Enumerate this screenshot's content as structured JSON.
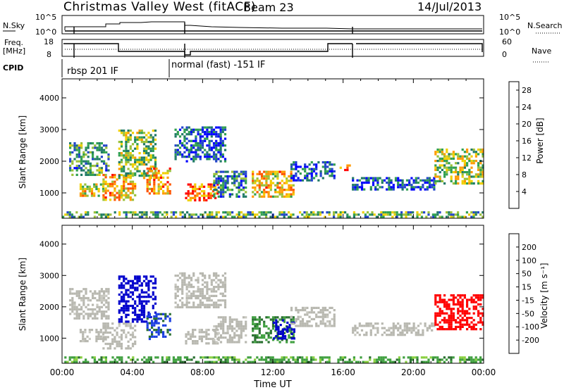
{
  "title": "Christmas Valley West (fitACF)",
  "beam": "Beam 23",
  "date": "14/Jul/2013",
  "xlabel": "Time UT",
  "x_ticks": [
    "00:00",
    "04:00",
    "08:00",
    "12:00",
    "16:00",
    "20:00",
    "00:00"
  ],
  "top_panels": {
    "nsky_label": "N.Sky",
    "nsky_ticks": [
      "10^5",
      "10^0"
    ],
    "nsearch_label": "N.Search",
    "freq_label_1": "Freq.",
    "freq_label_2": "[MHz]",
    "freq_ticks": [
      "18",
      "8"
    ],
    "nave_ticks": [
      "60",
      "0"
    ],
    "nave_label": "Nave",
    "cpid_label": "CPID",
    "cpid_1": "rbsp 201 IF",
    "cpid_2": "normal (fast) -151 IF"
  },
  "colors": {
    "power": [
      "#0000ff",
      "#2244cc",
      "#207a66",
      "#30a050",
      "#9ac03a",
      "#f0d000",
      "#ff9a00",
      "#ff5500",
      "#ff0000"
    ],
    "velocity": [
      "#0000cc",
      "#1c3fe0",
      "#2a7030",
      "#40a040",
      "#8ad040",
      "#c8c8c0",
      "#f0e000",
      "#ffa000",
      "#ff5000",
      "#ff0000"
    ],
    "ground": "#b8b8b0"
  },
  "chart_data": [
    {
      "type": "heatmap",
      "name": "power",
      "ylabel": "Slant Range [km]",
      "yticks": [
        1000,
        2000,
        3000,
        4000
      ],
      "ylim": [
        200,
        4600
      ],
      "xlim": [
        0,
        24
      ],
      "colorbar_label": "Power [dB]",
      "colorbar_ticks": [
        "4",
        "8",
        "12",
        "16",
        "20",
        "24",
        "28"
      ],
      "colorbar_range": [
        0,
        30
      ],
      "clusters": [
        {
          "t0": 0.4,
          "t1": 2.7,
          "r0": 1600,
          "r1": 2600,
          "v": 10
        },
        {
          "t0": 1.0,
          "t1": 2.4,
          "r0": 900,
          "r1": 1300,
          "v": 18
        },
        {
          "t0": 2.3,
          "t1": 4.2,
          "r0": 800,
          "r1": 1600,
          "v": 20
        },
        {
          "t0": 3.2,
          "t1": 5.3,
          "r0": 1500,
          "r1": 3000,
          "v": 14
        },
        {
          "t0": 4.8,
          "t1": 6.2,
          "r0": 1000,
          "r1": 1800,
          "v": 22
        },
        {
          "t0": 6.4,
          "t1": 9.3,
          "r0": 2000,
          "r1": 3100,
          "v": 6
        },
        {
          "t0": 7.0,
          "t1": 8.8,
          "r0": 800,
          "r1": 1300,
          "v": 24
        },
        {
          "t0": 8.6,
          "t1": 10.5,
          "r0": 900,
          "r1": 1700,
          "v": 8
        },
        {
          "t0": 10.8,
          "t1": 13.2,
          "r0": 900,
          "r1": 1700,
          "v": 20
        },
        {
          "t0": 13.0,
          "t1": 15.5,
          "r0": 1400,
          "r1": 2000,
          "v": 6
        },
        {
          "t0": 15.8,
          "t1": 16.4,
          "r0": 1700,
          "r1": 1900,
          "v": 22
        },
        {
          "t0": 16.5,
          "t1": 21.2,
          "r0": 1100,
          "r1": 1500,
          "v": 6
        },
        {
          "t0": 21.2,
          "t1": 23.9,
          "r0": 1300,
          "r1": 2400,
          "v": 16
        },
        {
          "t0": 0.0,
          "t1": 24.0,
          "r0": 250,
          "r1": 420,
          "v": 12
        }
      ]
    },
    {
      "type": "heatmap",
      "name": "velocity",
      "ylabel": "Slant Range [km]",
      "yticks": [
        1000,
        2000,
        3000,
        4000
      ],
      "ylim": [
        200,
        4600
      ],
      "xlim": [
        0,
        24
      ],
      "colorbar_label": "Velocity [m s⁻¹]",
      "colorbar_ticks": [
        "200",
        "100",
        "50",
        "15",
        "-15",
        "-50",
        "-100",
        "-200"
      ],
      "clusters": [
        {
          "t0": 0.4,
          "t1": 2.7,
          "r0": 1600,
          "r1": 2600,
          "v": 0,
          "g": true
        },
        {
          "t0": 1.0,
          "t1": 2.4,
          "r0": 900,
          "r1": 1300,
          "v": 0,
          "g": true
        },
        {
          "t0": 2.3,
          "t1": 4.2,
          "r0": 700,
          "r1": 1500,
          "v": 0,
          "g": true
        },
        {
          "t0": 3.2,
          "t1": 5.3,
          "r0": 1500,
          "r1": 3000,
          "v": 180
        },
        {
          "t0": 4.8,
          "t1": 6.2,
          "r0": 1000,
          "r1": 1800,
          "v": 80
        },
        {
          "t0": 6.4,
          "t1": 9.3,
          "r0": 2000,
          "r1": 3100,
          "v": 0,
          "g": true
        },
        {
          "t0": 7.0,
          "t1": 8.8,
          "r0": 800,
          "r1": 1300,
          "v": 0,
          "g": true
        },
        {
          "t0": 8.6,
          "t1": 10.5,
          "r0": 900,
          "r1": 1700,
          "v": 0,
          "g": true
        },
        {
          "t0": 10.8,
          "t1": 13.2,
          "r0": 900,
          "r1": 1700,
          "v": 40
        },
        {
          "t0": 12.0,
          "t1": 13.2,
          "r0": 1000,
          "r1": 1600,
          "v": 200
        },
        {
          "t0": 13.0,
          "t1": 15.5,
          "r0": 1400,
          "r1": 2000,
          "v": 0,
          "g": true
        },
        {
          "t0": 16.5,
          "t1": 21.2,
          "r0": 1100,
          "r1": 1500,
          "v": 0,
          "g": true
        },
        {
          "t0": 21.2,
          "t1": 23.9,
          "r0": 1300,
          "r1": 2400,
          "v": -220
        },
        {
          "t0": 0.0,
          "t1": 24.0,
          "r0": 250,
          "r1": 420,
          "v": 30
        }
      ]
    }
  ]
}
